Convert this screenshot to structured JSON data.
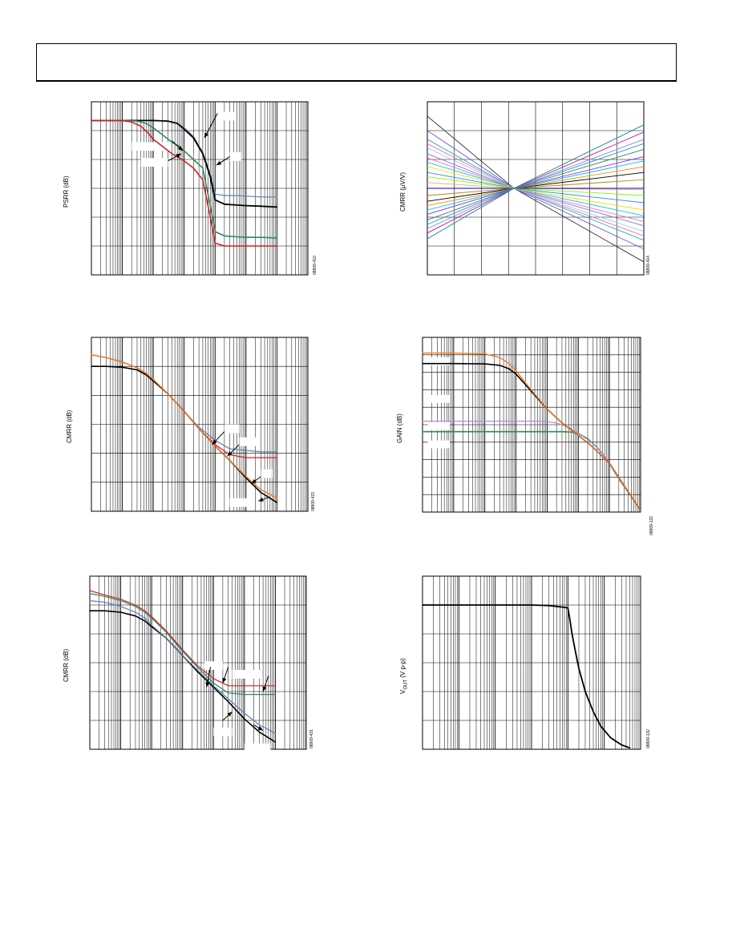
{
  "page": {
    "header": ""
  },
  "chart_data": [
    {
      "id": "psrr",
      "type": "line",
      "ylabel": "PSRR (dB)",
      "figure_code": "08809-410",
      "xscale": "log",
      "xlim": [
        1,
        10000000
      ],
      "ylim": [
        0,
        6
      ],
      "grid": true,
      "series": [
        {
          "color": "#5a7fb8",
          "width": 1.2,
          "x": [
            1,
            100,
            300,
            600,
            1000,
            2000,
            4000,
            7000,
            10000,
            20000,
            50000,
            100000,
            300000,
            1000000
          ],
          "y": [
            5.35,
            5.35,
            5.33,
            5.25,
            5.1,
            4.8,
            4.25,
            3.5,
            2.8,
            2.75,
            2.75,
            2.73,
            2.7,
            2.7
          ]
        },
        {
          "color": "#000000",
          "width": 1.8,
          "x": [
            1,
            100,
            300,
            600,
            1000,
            2000,
            4000,
            7000,
            10000,
            20000,
            50000,
            100000,
            300000,
            1000000
          ],
          "y": [
            5.35,
            5.35,
            5.33,
            5.25,
            5.05,
            4.75,
            4.2,
            3.4,
            2.6,
            2.45,
            2.42,
            2.4,
            2.38,
            2.35
          ]
        },
        {
          "color": "#2e8b57",
          "width": 1.6,
          "x": [
            1,
            10,
            30,
            60,
            100,
            200,
            400,
            700,
            1000,
            2000,
            4000,
            7000,
            10000,
            20000,
            50000,
            100000,
            300000,
            1000000
          ],
          "y": [
            5.35,
            5.35,
            5.33,
            5.25,
            5.1,
            4.85,
            4.6,
            4.45,
            4.3,
            4.0,
            3.7,
            2.4,
            1.5,
            1.35,
            1.32,
            1.3,
            1.3,
            1.28
          ]
        },
        {
          "color": "#d0202a",
          "width": 1.6,
          "x": [
            1,
            10,
            20,
            40,
            70,
            100,
            200,
            400,
            700,
            1000,
            2000,
            4000,
            7000,
            10000,
            20000,
            50000,
            100000,
            300000,
            1000000
          ],
          "y": [
            5.35,
            5.35,
            5.3,
            5.15,
            4.9,
            4.7,
            4.45,
            4.2,
            4.05,
            3.95,
            3.7,
            3.3,
            2.0,
            1.1,
            1.0,
            1.0,
            1.0,
            1.0,
            1.0
          ]
        }
      ],
      "arrows": [
        {
          "x1": 12000,
          "y1": 5.6,
          "x2": 4500,
          "y2": 4.75
        },
        {
          "x1": 400,
          "y1": 4.65,
          "x2": 900,
          "y2": 4.3
        },
        {
          "x1": 300,
          "y1": 3.95,
          "x2": 800,
          "y2": 4.2
        },
        {
          "x1": 30000,
          "y1": 4.1,
          "x2": 11000,
          "y2": 3.8
        }
      ],
      "label_boxes": [
        {
          "x": 12000,
          "y": 5.65,
          "w": 30000,
          "h": 0.3
        },
        {
          "x": 20,
          "y": 4.6,
          "w": 300,
          "h": 0.3
        },
        {
          "x": 40,
          "y": 4.05,
          "w": 260,
          "h": 0.3
        },
        {
          "x": 30000,
          "y": 4.25,
          "w": 40000,
          "h": 0.3
        }
      ]
    },
    {
      "id": "cmrr-input",
      "type": "line",
      "ylabel": "CMRR (µV/V)",
      "figure_code": "08809-414",
      "xscale": "linear",
      "xlim": [
        0,
        8
      ],
      "ylim": [
        0,
        6
      ],
      "grid": true,
      "pivot": [
        3.2,
        3.0
      ],
      "fan_left_y": [
        5.5,
        5.0,
        4.7,
        4.55,
        4.4,
        4.2,
        4.05,
        3.9,
        3.75,
        3.55,
        3.4,
        3.2,
        3.0,
        2.75,
        2.55,
        2.4,
        2.25,
        2.1,
        1.9,
        1.75,
        1.6,
        1.45,
        1.25
      ],
      "fan_right_y": [
        0.45,
        0.9,
        1.2,
        1.35,
        1.5,
        1.7,
        1.85,
        2.05,
        2.25,
        2.5,
        2.75,
        2.95,
        3.0,
        3.3,
        3.55,
        3.75,
        3.95,
        4.1,
        4.35,
        4.55,
        4.7,
        4.95,
        5.2
      ],
      "fan_colors": [
        "#333333",
        "#6a5acd",
        "#20b2aa",
        "#ff69b4",
        "#87ceeb",
        "#9370db",
        "#da70d6",
        "#00ced1",
        "#ffd700",
        "#1e90ff",
        "#7cfc00",
        "#ffa07a",
        "#0000cd",
        "#b8860b",
        "#000000",
        "#ff8c00",
        "#00bfff",
        "#8a2be2",
        "#2e8b57",
        "#4682b4",
        "#6495ed",
        "#c71585",
        "#008b8b"
      ]
    },
    {
      "id": "cmrr-1",
      "type": "line",
      "ylabel": "CMRR (dB)",
      "figure_code": "08809-423",
      "xscale": "log",
      "xlim": [
        1,
        10000000
      ],
      "ylim": [
        0,
        6
      ],
      "grid": true,
      "series": [
        {
          "color": "#000000",
          "width": 1.6,
          "x": [
            1,
            3,
            10,
            30,
            60,
            100,
            300,
            1000,
            3000,
            10000,
            30000,
            100000,
            300000,
            1000000
          ],
          "y": [
            5.0,
            5.0,
            4.97,
            4.88,
            4.7,
            4.5,
            4.05,
            3.45,
            2.85,
            2.25,
            1.75,
            1.15,
            0.65,
            0.3
          ]
        },
        {
          "color": "#5a7fb8",
          "width": 1.2,
          "x": [
            1,
            3,
            10,
            30,
            60,
            100,
            300,
            1000,
            3000,
            10000,
            30000,
            100000,
            300000,
            1000000
          ],
          "y": [
            5.4,
            5.3,
            5.15,
            4.95,
            4.75,
            4.55,
            4.05,
            3.45,
            2.9,
            2.45,
            2.15,
            2.1,
            2.05,
            2.05
          ]
        },
        {
          "color": "#d0202a",
          "width": 1.2,
          "x": [
            1,
            3,
            10,
            30,
            60,
            100,
            300,
            1000,
            3000,
            10000,
            30000,
            100000,
            300000,
            1000000
          ],
          "y": [
            5.4,
            5.3,
            5.15,
            4.95,
            4.75,
            4.55,
            4.05,
            3.45,
            2.85,
            2.3,
            1.95,
            1.85,
            1.85,
            1.85
          ]
        },
        {
          "color": "#f07a20",
          "width": 1.4,
          "x": [
            1,
            3,
            10,
            30,
            60,
            100,
            300,
            1000,
            3000,
            10000,
            30000,
            100000,
            300000,
            1000000
          ],
          "y": [
            5.4,
            5.3,
            5.15,
            4.95,
            4.75,
            4.55,
            4.05,
            3.45,
            2.85,
            2.25,
            1.75,
            1.2,
            0.75,
            0.45
          ]
        }
      ],
      "arrows": [
        {
          "x1": 20000,
          "y1": 2.75,
          "x2": 8000,
          "y2": 2.3
        },
        {
          "x1": 60000,
          "y1": 2.3,
          "x2": 25000,
          "y2": 1.9
        },
        {
          "x1": 300000,
          "y1": 1.2,
          "x2": 150000,
          "y2": 0.95
        },
        {
          "x1": 600000,
          "y1": 0.5,
          "x2": 250000,
          "y2": 0.35
        }
      ],
      "label_boxes": [
        {
          "x": 20000,
          "y": 3.0,
          "w": 40000,
          "h": 0.3
        },
        {
          "x": 60000,
          "y": 2.55,
          "w": 200000,
          "h": 0.3
        },
        {
          "x": 300000,
          "y": 1.45,
          "w": 400000,
          "h": 0.3
        },
        {
          "x": 30000,
          "y": 0.45,
          "w": 100000,
          "h": 0.3
        }
      ]
    },
    {
      "id": "gain",
      "type": "line",
      "ylabel": "GAIN (dB)",
      "figure_code": "08809-122",
      "xscale": "log",
      "xlim": [
        1,
        10000000
      ],
      "ylim": [
        0,
        10
      ],
      "grid": true,
      "series": [
        {
          "color": "#2e8b57",
          "width": 1.6,
          "x": [
            1,
            100,
            1000,
            10000,
            30000,
            60000,
            100000,
            200000,
            400000,
            700000,
            1000000,
            2000000,
            5000000,
            10000000
          ],
          "y": [
            4.6,
            4.6,
            4.6,
            4.6,
            4.6,
            4.58,
            4.5,
            4.2,
            3.7,
            3.2,
            2.8,
            1.9,
            0.9,
            0.1
          ]
        },
        {
          "color": "#b08cd8",
          "width": 1.2,
          "x": [
            1,
            100,
            1000,
            5000,
            10000,
            20000,
            50000,
            100000,
            200000,
            400000,
            700000,
            1000000,
            2000000,
            5000000,
            10000000
          ],
          "y": [
            5.2,
            5.2,
            5.2,
            5.2,
            5.18,
            5.1,
            4.85,
            4.5,
            4.15,
            3.7,
            3.2,
            2.8,
            1.9,
            0.9,
            0.1
          ]
        },
        {
          "color": "#000000",
          "width": 1.6,
          "x": [
            1,
            10,
            100,
            300,
            600,
            1000,
            2000,
            5000,
            10000,
            30000,
            100000,
            300000,
            1000000,
            3000000,
            10000000
          ],
          "y": [
            8.5,
            8.5,
            8.48,
            8.4,
            8.2,
            7.9,
            7.3,
            6.5,
            5.9,
            5.1,
            4.4,
            3.7,
            2.8,
            1.5,
            0.1
          ]
        },
        {
          "color": "#f07a20",
          "width": 1.4,
          "x": [
            1,
            10,
            100,
            300,
            600,
            1000,
            2000,
            5000,
            10000,
            30000,
            100000,
            300000,
            1000000,
            3000000,
            10000000
          ],
          "y": [
            9.1,
            9.1,
            9.05,
            8.85,
            8.5,
            8.1,
            7.4,
            6.55,
            5.9,
            5.1,
            4.4,
            3.7,
            2.8,
            1.5,
            0.1
          ]
        }
      ],
      "label_boxes": [
        {
          "x": 1.5,
          "y": 8.85,
          "w": 6,
          "h": 0.45
        },
        {
          "x": 1.5,
          "y": 6.7,
          "w": 6,
          "h": 0.45
        },
        {
          "x": 1.5,
          "y": 5.15,
          "w": 6,
          "h": 0.45
        },
        {
          "x": 1.5,
          "y": 4.1,
          "w": 6,
          "h": 0.45
        }
      ]
    },
    {
      "id": "cmrr-2",
      "type": "line",
      "ylabel": "CMRR (dB)",
      "figure_code": "08809-431",
      "xscale": "log",
      "xlim": [
        1,
        10000000
      ],
      "ylim": [
        0,
        6
      ],
      "grid": true,
      "series": [
        {
          "color": "#000000",
          "width": 1.6,
          "x": [
            1,
            3,
            10,
            30,
            60,
            100,
            300,
            1000,
            3000,
            10000,
            30000,
            100000,
            300000,
            1000000
          ],
          "y": [
            4.8,
            4.8,
            4.75,
            4.62,
            4.45,
            4.25,
            3.85,
            3.25,
            2.7,
            2.15,
            1.65,
            1.05,
            0.6,
            0.25
          ]
        },
        {
          "color": "#5a7fb8",
          "width": 1.2,
          "x": [
            1,
            3,
            10,
            30,
            60,
            100,
            300,
            1000,
            3000,
            10000,
            30000,
            100000,
            300000,
            1000000
          ],
          "y": [
            5.15,
            5.1,
            4.95,
            4.75,
            4.55,
            4.3,
            3.85,
            3.25,
            2.75,
            2.2,
            1.75,
            1.25,
            0.85,
            0.55
          ]
        },
        {
          "color": "#2e8b57",
          "width": 1.2,
          "x": [
            1,
            3,
            10,
            30,
            60,
            100,
            300,
            1000,
            3000,
            10000,
            30000,
            100000,
            300000,
            1000000
          ],
          "y": [
            5.4,
            5.3,
            5.15,
            4.95,
            4.75,
            4.55,
            4.05,
            3.4,
            2.85,
            2.3,
            1.95,
            1.9,
            1.9,
            1.9
          ]
        },
        {
          "color": "#d0202a",
          "width": 1.2,
          "x": [
            1,
            3,
            10,
            30,
            60,
            100,
            300,
            1000,
            3000,
            10000,
            30000,
            100000,
            300000,
            1000000
          ],
          "y": [
            5.5,
            5.35,
            5.2,
            5.0,
            4.8,
            4.6,
            4.1,
            3.45,
            2.9,
            2.45,
            2.2,
            2.2,
            2.2,
            2.2
          ]
        }
      ],
      "arrows": [
        {
          "x1": 8000,
          "y1": 2.85,
          "x2": 6000,
          "y2": 2.15
        },
        {
          "x1": 30000,
          "y1": 2.85,
          "x2": 20000,
          "y2": 2.3
        },
        {
          "x1": 600000,
          "y1": 2.55,
          "x2": 400000,
          "y2": 2.0
        },
        {
          "x1": 20000,
          "y1": 1.0,
          "x2": 40000,
          "y2": 1.3
        },
        {
          "x1": 200000,
          "y1": 0.85,
          "x2": 400000,
          "y2": 0.65
        }
      ],
      "label_boxes": [
        {
          "x": 5000,
          "y": 3.05,
          "w": 15000,
          "h": 0.3
        },
        {
          "x": 40000,
          "y": 2.75,
          "w": 300000,
          "h": 0.3
        },
        {
          "x": 10000,
          "y": 0.75,
          "w": 30000,
          "h": 0.3
        },
        {
          "x": 100000,
          "y": 0.2,
          "w": 600000,
          "h": 0.3
        }
      ]
    },
    {
      "id": "vout",
      "type": "line",
      "ylabel_main": "V",
      "ylabel_sub": "OUT",
      "ylabel_rest": " (V p-p)",
      "figure_code": "08809-132",
      "xscale": "log",
      "xlim": [
        100,
        100000000
      ],
      "ylim": [
        0,
        6
      ],
      "grid": true,
      "series": [
        {
          "color": "#000000",
          "width": 1.8,
          "x": [
            100,
            1000,
            10000,
            100000,
            300000,
            500000,
            800000,
            1000000,
            1100000,
            1300000,
            1600000,
            2000000,
            3000000,
            5000000,
            8000000,
            15000000,
            30000000,
            50000000
          ],
          "y": [
            5.0,
            5.0,
            5.0,
            5.0,
            4.98,
            4.95,
            4.92,
            4.9,
            4.6,
            4.0,
            3.4,
            2.8,
            2.0,
            1.3,
            0.8,
            0.4,
            0.15,
            0.05
          ]
        }
      ]
    }
  ]
}
